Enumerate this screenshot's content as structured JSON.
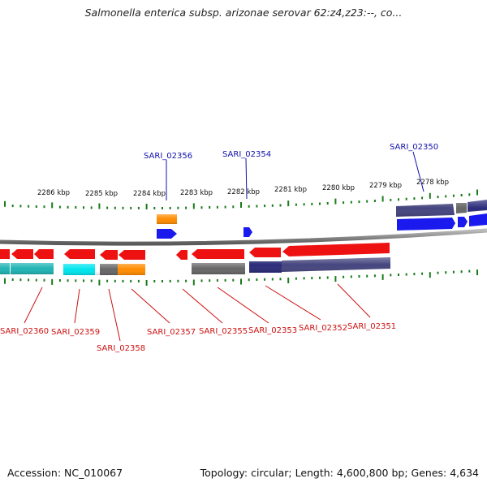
{
  "title": "Salmonella enterica subsp. arizonae serovar 62:z4,z23:--, co...",
  "footer": {
    "accession": "Accession: NC_010067",
    "summary": "Topology: circular; Length: 4,600,800 bp; Genes: 4,634"
  },
  "scale_labels": [
    "2286 kbp",
    "2285 kbp",
    "2284 kbp",
    "2283 kbp",
    "2282 kbp",
    "2281 kbp",
    "2280 kbp",
    "2279 kbp",
    "2278 kbp"
  ],
  "colors": {
    "forward_gene": "#1a1aee",
    "reverse_gene": "#ee1111",
    "forward_label": "#1010aa",
    "reverse_label": "#cc1010",
    "cds_navy": "#2b2b7a",
    "cds_slate": "#45457f",
    "cds_gray": "#666666",
    "cds_teal": "#1fb3b3",
    "cds_cyan": "#00e5ee",
    "cds_orange": "#ff8c00",
    "ticks": "#1a7a1a",
    "backbone": "#888888"
  },
  "forward_labels": [
    "SARI_02356",
    "SARI_02354",
    "SARI_02350"
  ],
  "reverse_labels": [
    "SARI_02360",
    "SARI_02359",
    "SARI_02358",
    "SARI_02357",
    "SARI_02355",
    "SARI_02353",
    "SARI_02352",
    "SARI_02351"
  ]
}
